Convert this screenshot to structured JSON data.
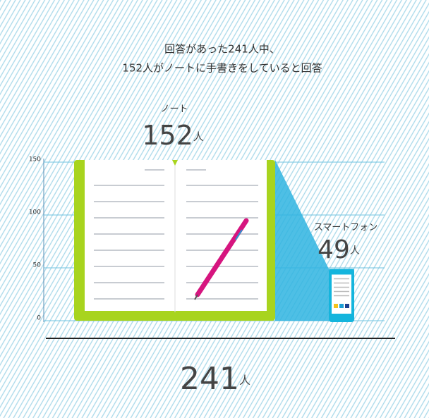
{
  "chart_data": {
    "type": "bar",
    "title": [
      "回答があった241人中、",
      "152人がノートに手書きをしていると回答"
    ],
    "categories": [
      "ノート",
      "スマートフォン"
    ],
    "values": [
      152,
      49
    ],
    "colors": [
      "#a8d41e",
      "#14b5dd"
    ],
    "unit": "人",
    "total": 241,
    "ylim": [
      0,
      150
    ],
    "yticks": [
      0,
      50,
      100,
      150
    ],
    "grid": true
  }
}
